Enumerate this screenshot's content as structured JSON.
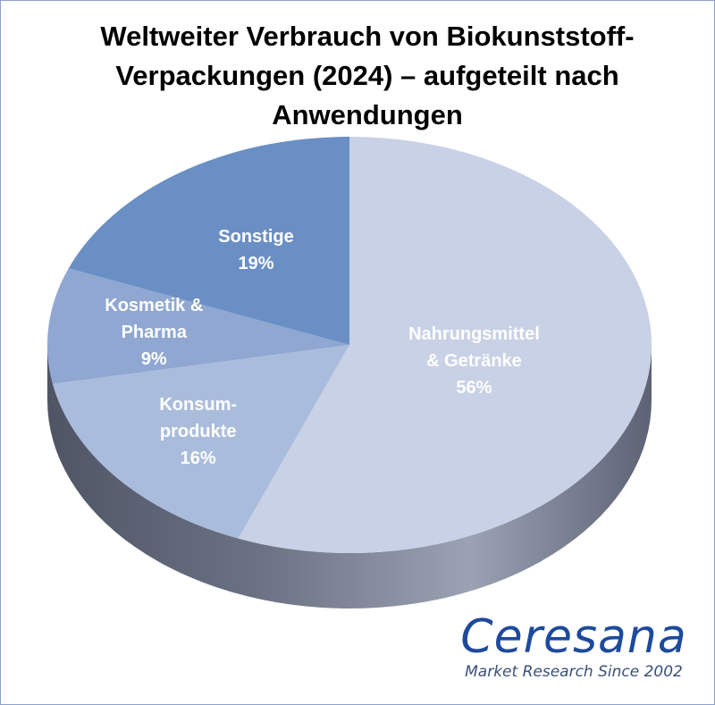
{
  "chart_data": {
    "type": "pie",
    "title": "Weltweiter Verbrauch von Biokunststoff-Verpackungen (2024) – aufgeteilt nach Anwendungen",
    "unit": "%",
    "slices": [
      {
        "label": "Nahrungsmittel\n& Getränke",
        "value": 56,
        "value_label": "56%",
        "color": "#c8d1e5"
      },
      {
        "label": "Konsum-\nprodukte",
        "value": 16,
        "value_label": "16%",
        "color": "#aabcdc"
      },
      {
        "label": "Kosmetik &\nPharma",
        "value": 9,
        "value_label": "9%",
        "color": "#8fa7d1"
      },
      {
        "label": "Sonstige",
        "value": 19,
        "value_label": "19%",
        "color": "#6a8fc4"
      }
    ]
  },
  "branding": {
    "name": "Ceresana",
    "tagline": "Market Research Since 2002"
  }
}
